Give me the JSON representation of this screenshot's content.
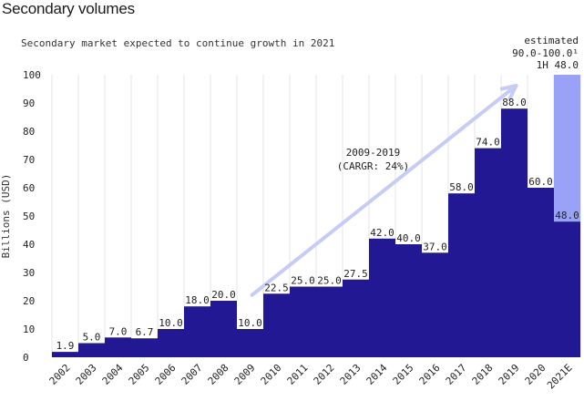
{
  "page": {
    "title": "Secondary volumes"
  },
  "chart_data": {
    "type": "bar",
    "subtitle": "Secondary market expected to continue growth in 2021",
    "ylabel": "Billions (USD)",
    "ylim": [
      0,
      100
    ],
    "yticks": [
      0,
      10,
      20,
      30,
      40,
      50,
      60,
      70,
      80,
      90,
      100
    ],
    "categories": [
      "2002",
      "2003",
      "2004",
      "2005",
      "2006",
      "2007",
      "2008",
      "2009",
      "2010",
      "2011",
      "2012",
      "2013",
      "2014",
      "2015",
      "2016",
      "2017",
      "2018",
      "2019",
      "2020",
      "2021E"
    ],
    "values": [
      1.9,
      5.0,
      7.0,
      6.7,
      10.0,
      18.0,
      20.0,
      10.0,
      22.5,
      25.0,
      25.0,
      27.5,
      42.0,
      40.0,
      37.0,
      58.0,
      74.0,
      88.0,
      60.0,
      48.0
    ],
    "value_labels": [
      "1.9",
      "5.0",
      "7.0",
      "6.7",
      "10.0",
      "18.0",
      "20.0",
      "10.0",
      "22.5",
      "25.0",
      "25.0",
      "27.5",
      "42.0",
      "40.0",
      "37.0",
      "58.0",
      "74.0",
      "88.0",
      "60.0",
      "48.0"
    ],
    "estimate": {
      "category": "2021E",
      "range_top": 100.0,
      "label_line1": "estimated",
      "label_line2": "90.0-100.0¹",
      "label_line3": "1H 48.0"
    },
    "annotation": {
      "line1": "2009-2019",
      "line2": "(CARGR: 24%)",
      "arrow_from": [
        "2009",
        22
      ],
      "arrow_to": [
        "2019",
        100
      ]
    },
    "colors": {
      "bar": "#221893",
      "estimate": "#9aa2f7",
      "arrow": "#c7ccf7",
      "grid": "#e6e6e6",
      "text": "#222222"
    },
    "grid": true
  }
}
